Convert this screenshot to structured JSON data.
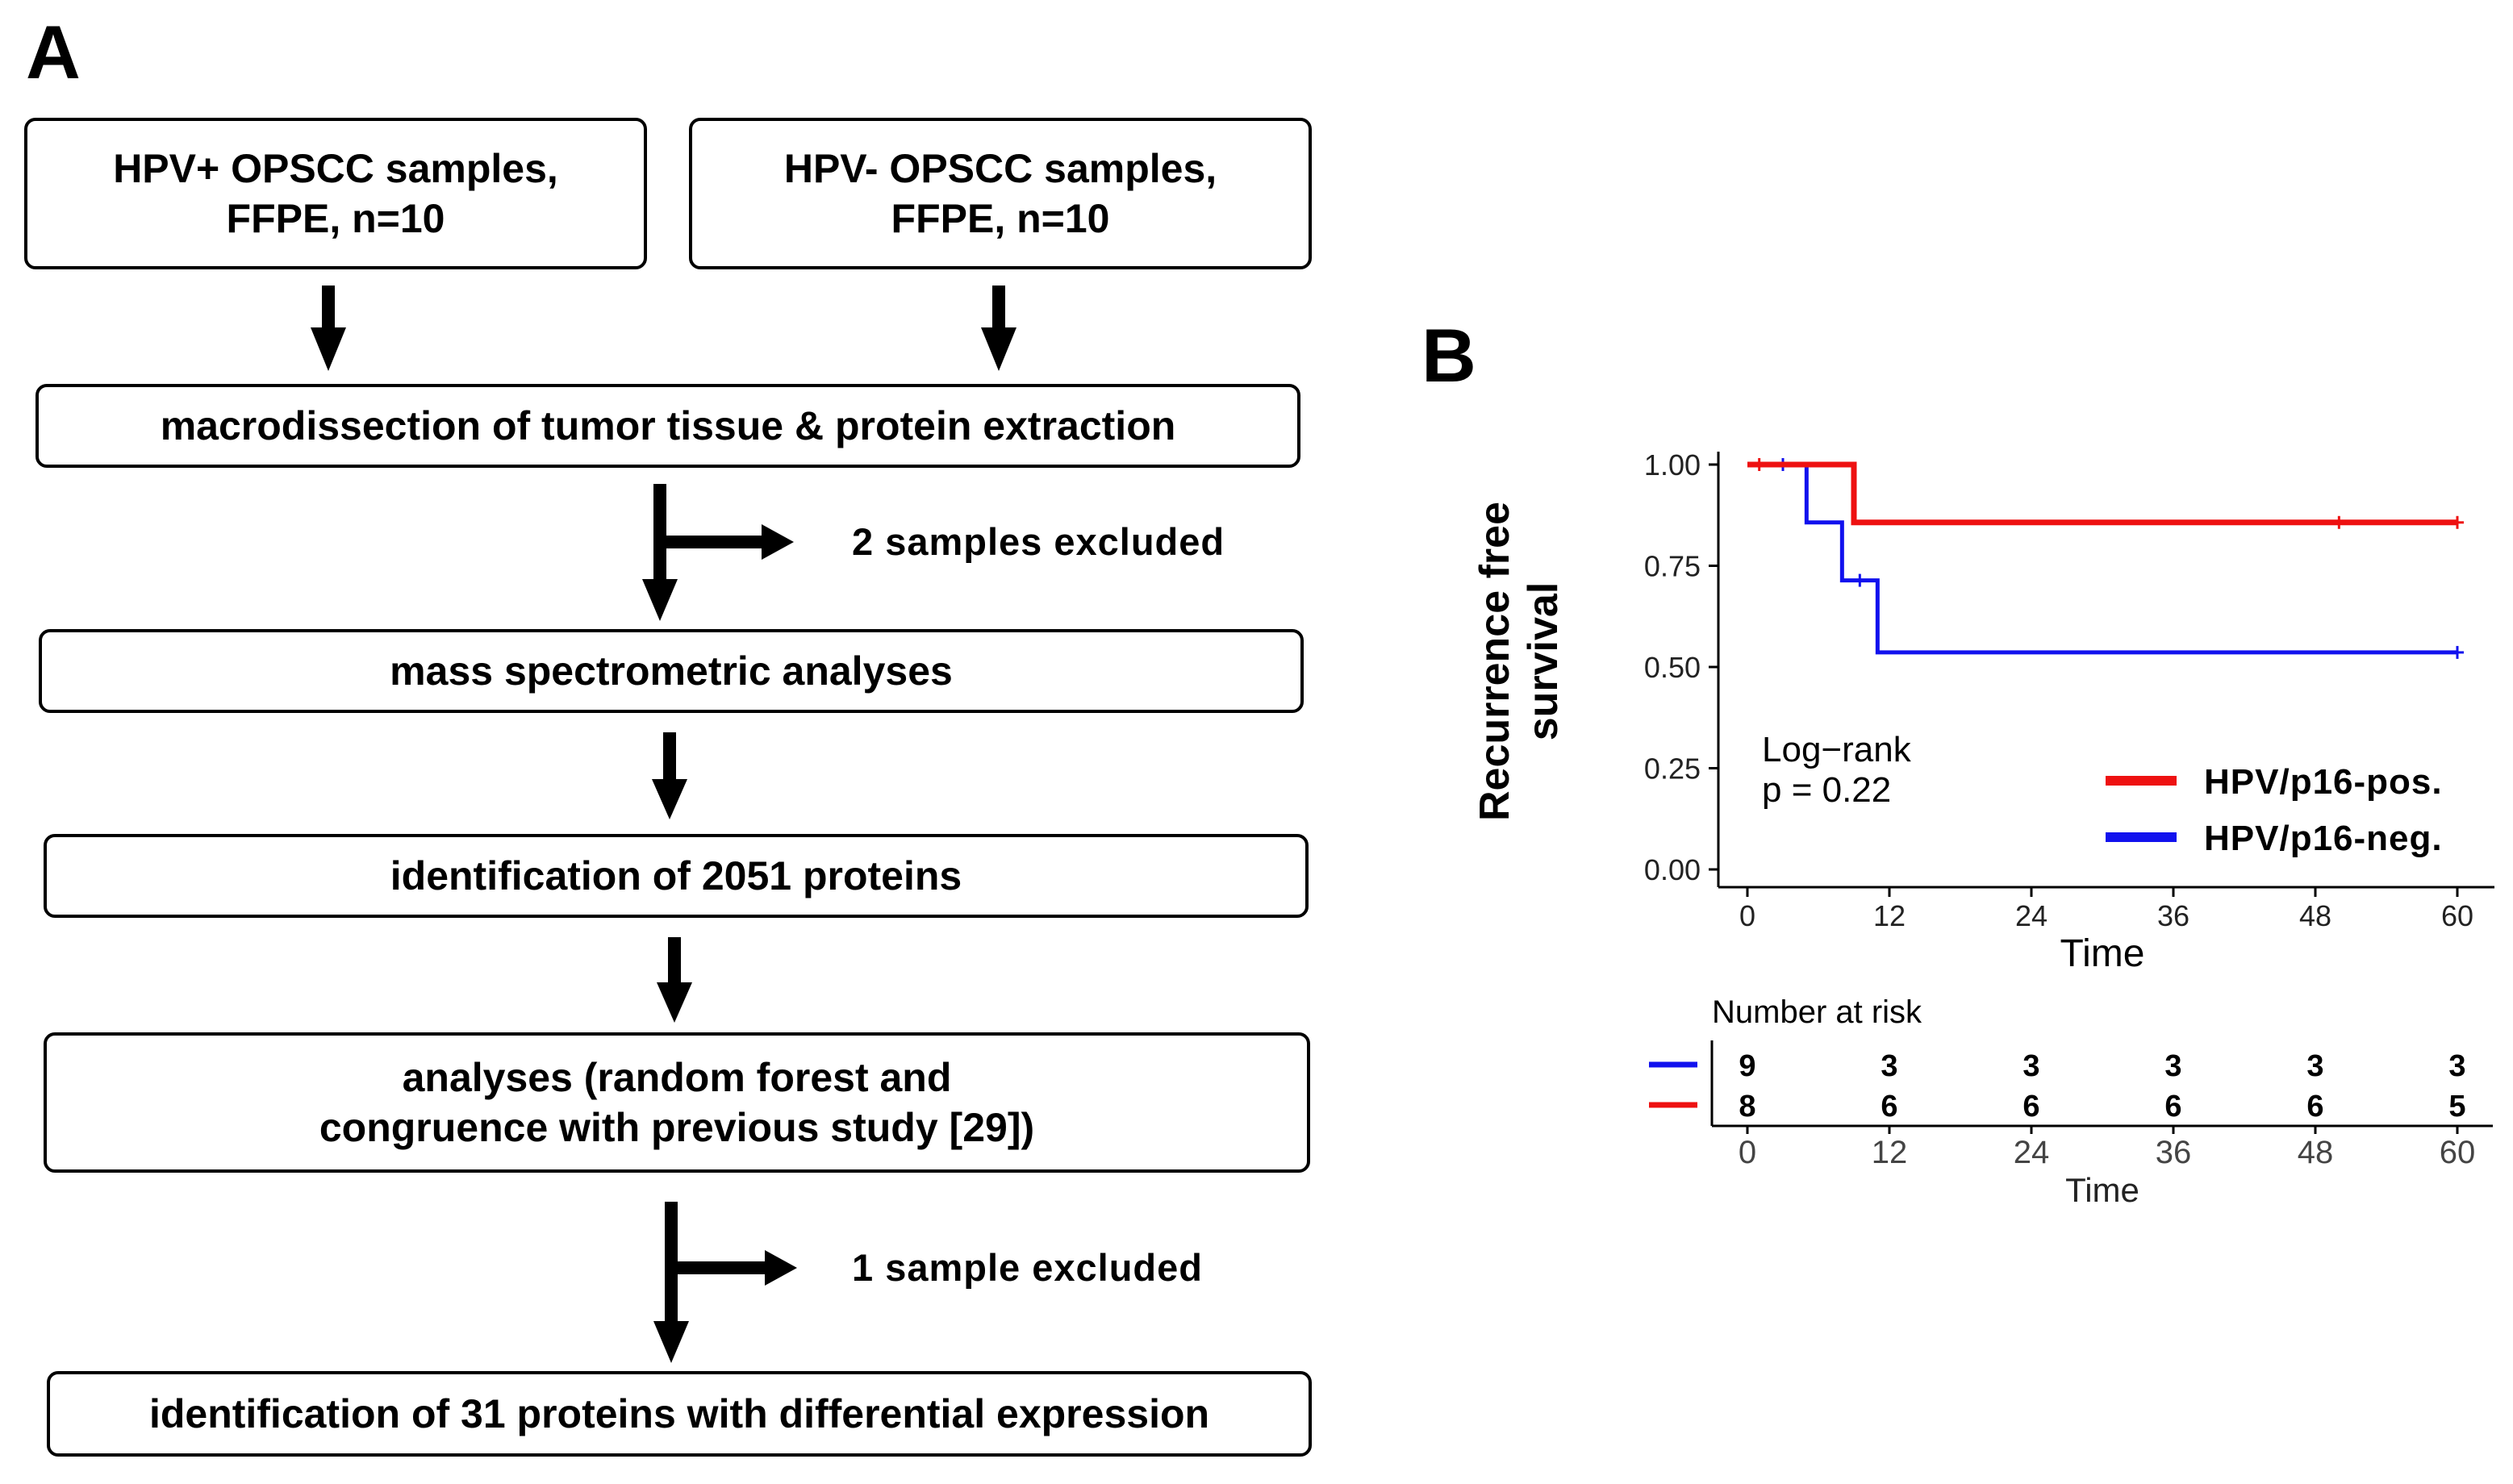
{
  "panel_a": {
    "letter": "A",
    "box_hpv_pos": "HPV+ OPSCC samples,\nFFPE, n=10",
    "box_hpv_neg": "HPV- OPSCC samples,\nFFPE, n=10",
    "step_macrodissection": "macrodissection of tumor tissue & protein extraction",
    "excluded_1": "2 samples excluded",
    "step_mass_spec": "mass spectrometric analyses",
    "step_identification": "identification of 2051 proteins",
    "step_analyses": "analyses (random forest and\ncongruence with previous study [29])",
    "excluded_2": "1 sample excluded",
    "step_final": "identification of 31 proteins with differential expression"
  },
  "panel_b": {
    "letter": "B",
    "annotation_line1": "Log−rank",
    "annotation_line2": "p = 0.22",
    "risk_table_title": "Number at risk"
  },
  "chart_data": {
    "type": "line",
    "subtype": "kaplan-meier step",
    "xlabel": "Time",
    "ylabel": "Recurrence free\nsurvival",
    "xlim": [
      0,
      60
    ],
    "ylim": [
      0,
      1
    ],
    "x_ticks": [
      0,
      12,
      24,
      36,
      48,
      60
    ],
    "y_ticks": [
      "0.00",
      "0.25",
      "0.50",
      "0.75",
      "1.00"
    ],
    "legend_position": "bottom-right",
    "series": [
      {
        "name": "HPV/p16-pos.",
        "color": "#ee1111",
        "steps": [
          [
            0,
            1.0
          ],
          [
            9,
            1.0
          ],
          [
            9,
            0.857
          ],
          [
            60,
            0.857
          ]
        ],
        "censor_times": [
          1,
          50,
          60
        ],
        "censor_values": [
          1.0,
          0.857,
          0.857
        ],
        "number_at_risk": [
          8,
          6,
          6,
          6,
          6,
          5
        ]
      },
      {
        "name": "HPV/p16-neg.",
        "color": "#1111ee",
        "steps": [
          [
            0,
            1.0
          ],
          [
            5,
            1.0
          ],
          [
            5,
            0.857
          ],
          [
            8,
            0.857
          ],
          [
            8,
            0.714
          ],
          [
            11,
            0.714
          ],
          [
            11,
            0.536
          ],
          [
            60,
            0.536
          ]
        ],
        "censor_times": [
          3,
          9.5,
          60
        ],
        "censor_values": [
          1.0,
          0.714,
          0.536
        ],
        "number_at_risk": [
          9,
          3,
          3,
          3,
          3,
          3
        ]
      }
    ],
    "risk_table_xlabel": "Time",
    "risk_table_ticks": [
      0,
      12,
      24,
      36,
      48,
      60
    ]
  }
}
